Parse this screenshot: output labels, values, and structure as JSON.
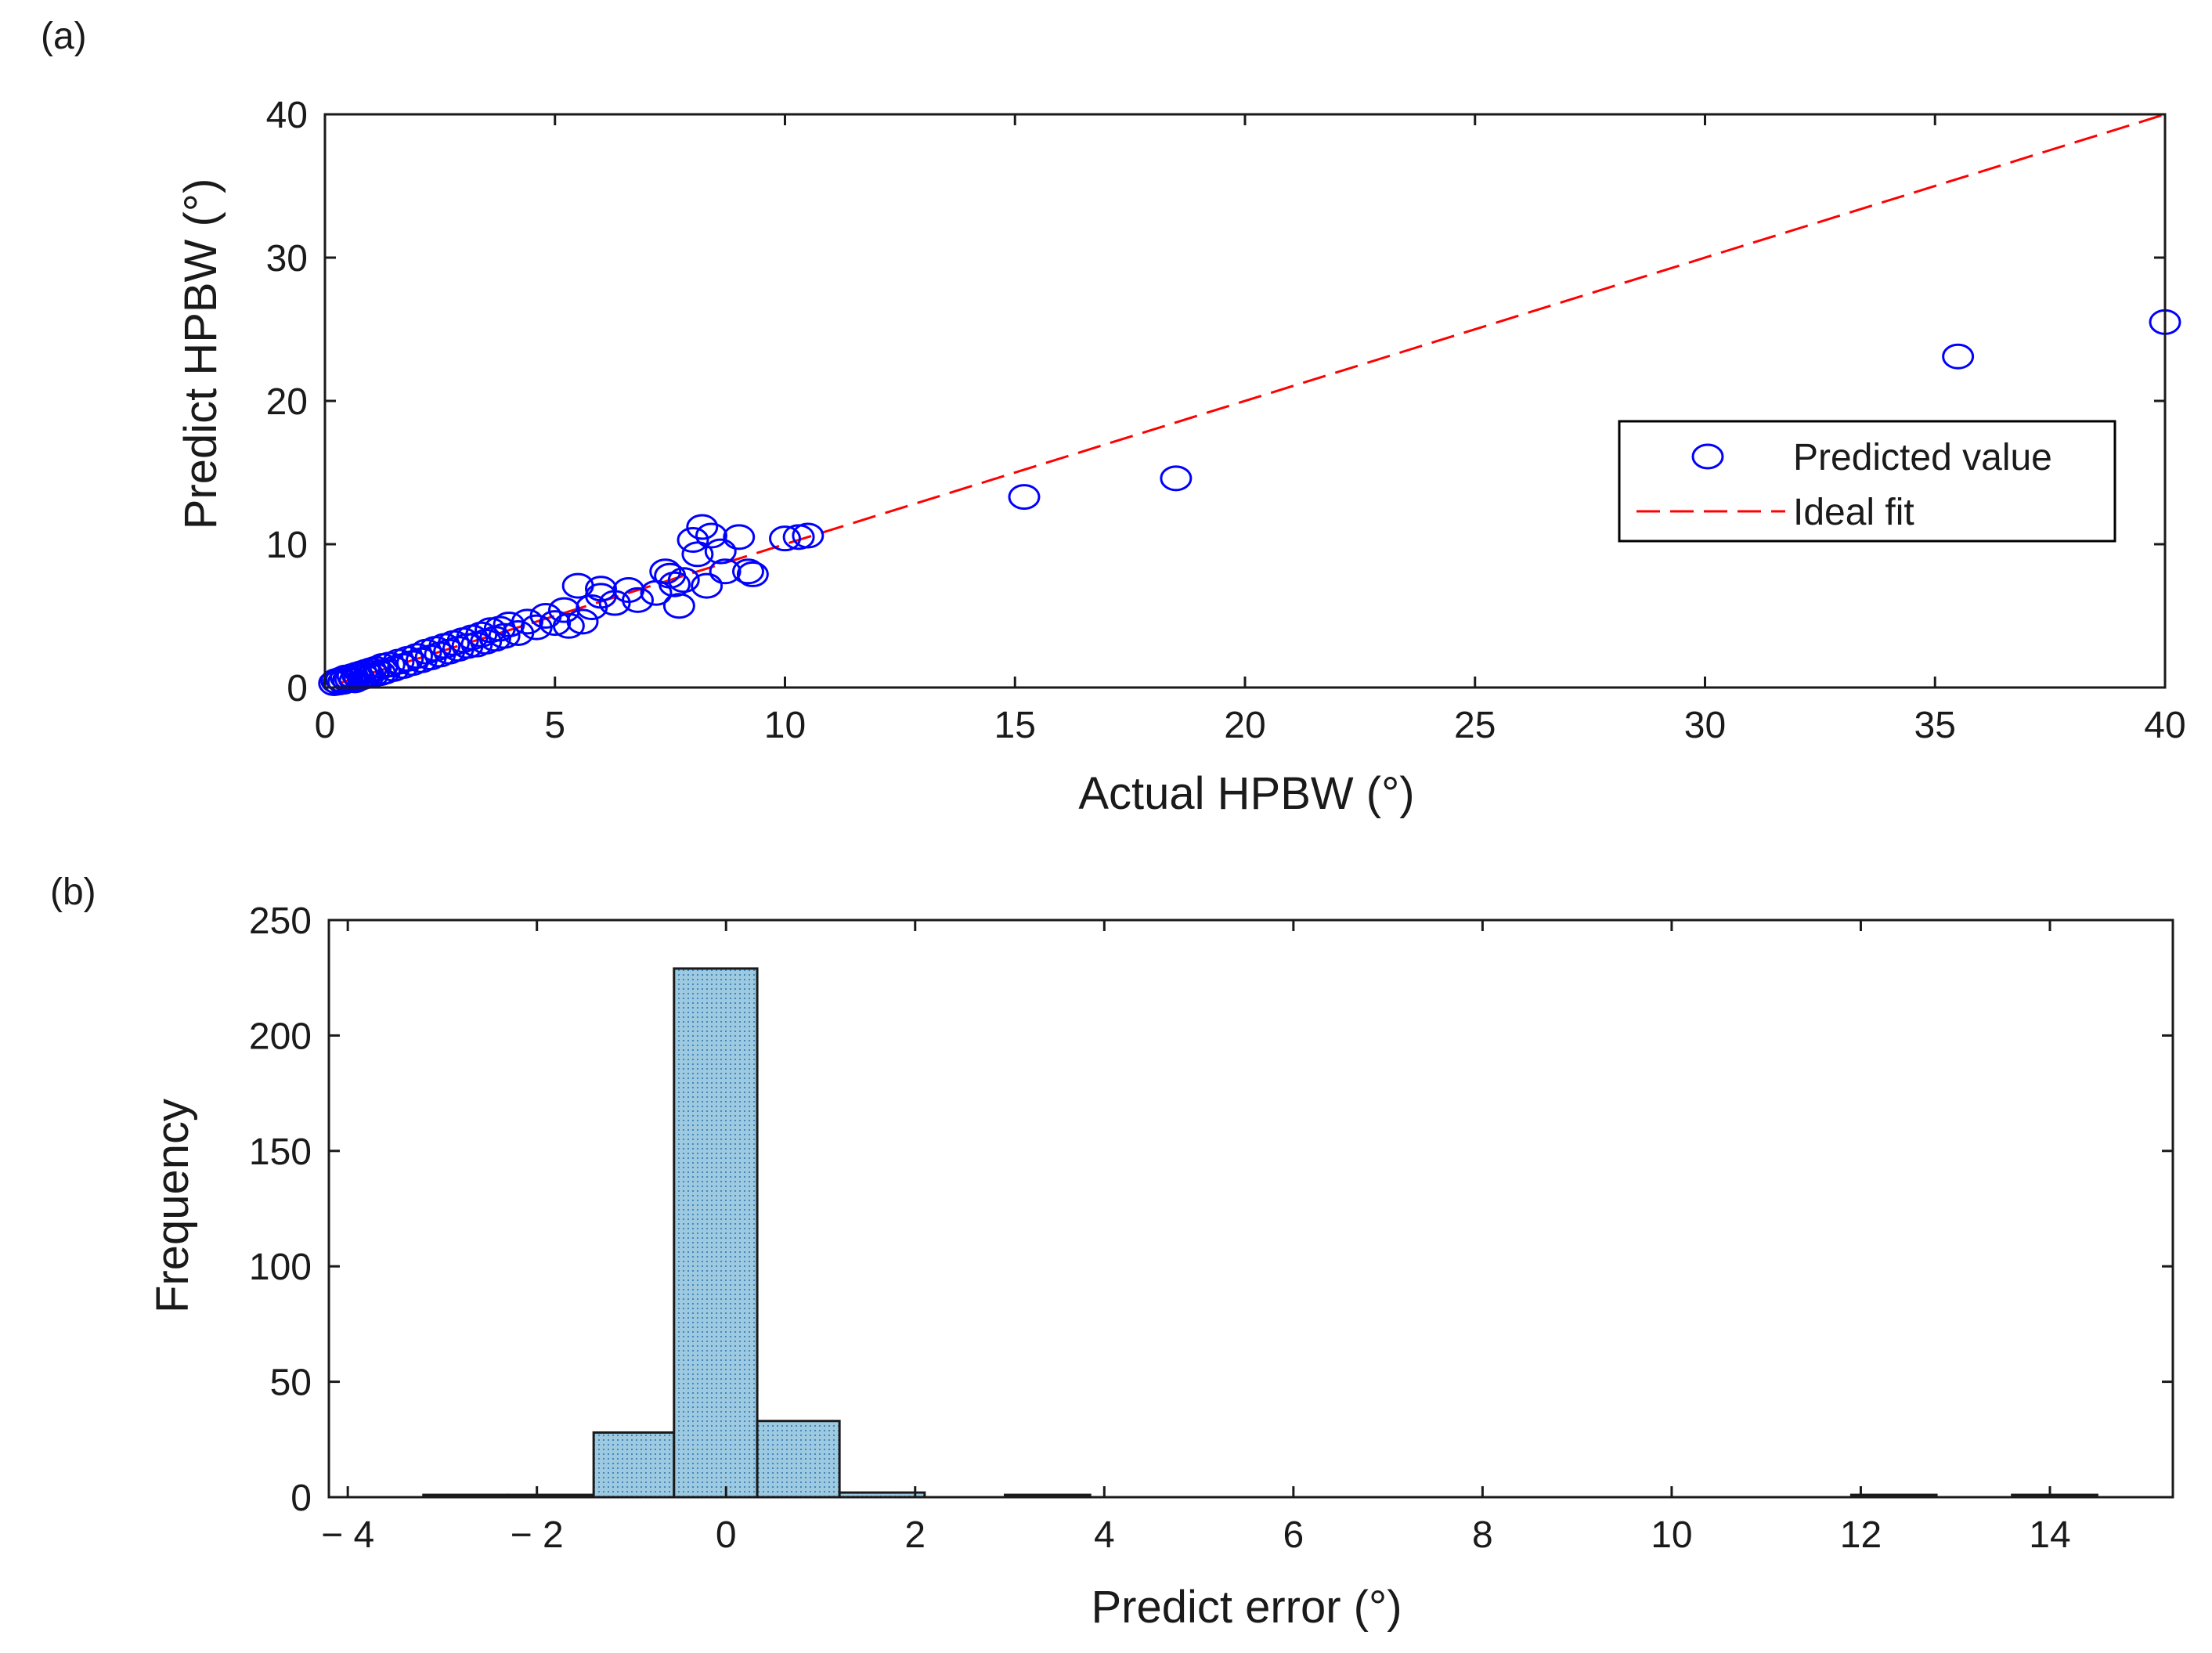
{
  "chart_data": [
    {
      "panel_label": "(a)",
      "type": "scatter",
      "title": "",
      "xlabel": "Actual HPBW (°)",
      "ylabel": "Predict HPBW (°)",
      "xlim": [
        0,
        40
      ],
      "ylim": [
        0,
        40
      ],
      "xticks": [
        0,
        5,
        10,
        15,
        20,
        25,
        30,
        35,
        40
      ],
      "yticks": [
        0,
        10,
        20,
        30,
        40
      ],
      "xtick_labels": [
        "0",
        "5",
        "10",
        "15",
        "20",
        "25",
        "30",
        "35",
        "40"
      ],
      "ytick_labels": [
        "0",
        "10",
        "20",
        "30",
        "40"
      ],
      "legend_position": "right-middle",
      "series": [
        {
          "name": "Predicted value",
          "style": "open-circle",
          "color": "#0000ff",
          "points": [
            [
              0.2,
              0.3
            ],
            [
              0.25,
              0.45
            ],
            [
              0.3,
              0.35
            ],
            [
              0.35,
              0.55
            ],
            [
              0.4,
              0.4
            ],
            [
              0.45,
              0.7
            ],
            [
              0.5,
              0.5
            ],
            [
              0.55,
              0.6
            ],
            [
              0.6,
              0.8
            ],
            [
              0.65,
              0.5
            ],
            [
              0.7,
              0.9
            ],
            [
              0.75,
              0.65
            ],
            [
              0.8,
              1.0
            ],
            [
              0.85,
              0.75
            ],
            [
              0.9,
              1.1
            ],
            [
              0.95,
              0.85
            ],
            [
              1.0,
              1.2
            ],
            [
              1.05,
              0.9
            ],
            [
              1.1,
              1.3
            ],
            [
              1.2,
              1.0
            ],
            [
              1.25,
              1.5
            ],
            [
              1.3,
              1.1
            ],
            [
              1.4,
              1.6
            ],
            [
              1.5,
              1.3
            ],
            [
              1.6,
              1.8
            ],
            [
              1.7,
              1.5
            ],
            [
              1.8,
              2.0
            ],
            [
              1.9,
              1.7
            ],
            [
              2.0,
              2.2
            ],
            [
              2.1,
              1.9
            ],
            [
              2.2,
              2.5
            ],
            [
              2.3,
              2.1
            ],
            [
              2.4,
              2.7
            ],
            [
              2.5,
              2.3
            ],
            [
              2.6,
              2.9
            ],
            [
              2.7,
              2.5
            ],
            [
              2.8,
              3.1
            ],
            [
              2.9,
              2.7
            ],
            [
              3.0,
              3.3
            ],
            [
              3.1,
              2.9
            ],
            [
              3.2,
              3.5
            ],
            [
              3.3,
              3.0
            ],
            [
              3.4,
              3.7
            ],
            [
              3.5,
              3.2
            ],
            [
              3.6,
              4.0
            ],
            [
              3.7,
              3.4
            ],
            [
              3.8,
              4.1
            ],
            [
              3.9,
              3.6
            ],
            [
              4.0,
              4.4
            ],
            [
              4.2,
              3.8
            ],
            [
              4.4,
              4.6
            ],
            [
              4.6,
              4.2
            ],
            [
              4.8,
              5.0
            ],
            [
              5.0,
              4.5
            ],
            [
              5.2,
              5.4
            ],
            [
              5.3,
              4.3
            ],
            [
              5.5,
              7.1
            ],
            [
              5.6,
              4.6
            ],
            [
              5.8,
              5.6
            ],
            [
              6.0,
              6.4
            ],
            [
              6.0,
              6.9
            ],
            [
              6.3,
              5.9
            ],
            [
              6.6,
              6.8
            ],
            [
              6.8,
              6.1
            ],
            [
              7.2,
              6.6
            ],
            [
              7.4,
              8.1
            ],
            [
              7.5,
              7.8
            ],
            [
              7.6,
              7.2
            ],
            [
              7.7,
              5.7
            ],
            [
              7.8,
              7.5
            ],
            [
              8.0,
              10.3
            ],
            [
              8.1,
              9.3
            ],
            [
              8.2,
              11.2
            ],
            [
              8.3,
              7.1
            ],
            [
              8.4,
              10.6
            ],
            [
              8.6,
              9.5
            ],
            [
              8.7,
              8.1
            ],
            [
              9.0,
              10.5
            ],
            [
              9.2,
              8.1
            ],
            [
              9.3,
              7.9
            ],
            [
              10.0,
              10.4
            ],
            [
              10.3,
              10.5
            ],
            [
              10.5,
              10.6
            ],
            [
              15.2,
              13.3
            ],
            [
              18.5,
              14.6
            ],
            [
              35.5,
              23.1
            ],
            [
              40.0,
              25.5
            ]
          ]
        },
        {
          "name": "Ideal fit",
          "style": "dashed-line",
          "color": "#ff0000",
          "points": [
            [
              0.3,
              0.3
            ],
            [
              40,
              40
            ]
          ]
        }
      ]
    },
    {
      "panel_label": "(b)",
      "type": "bar",
      "title": "",
      "xlabel": "Predict error (°)",
      "ylabel": "Frequency",
      "xlim": [
        -4.2,
        15.3
      ],
      "ylim": [
        0,
        250
      ],
      "xticks": [
        -4,
        -2,
        0,
        2,
        4,
        6,
        8,
        10,
        12,
        14
      ],
      "yticks": [
        0,
        50,
        100,
        150,
        200,
        250
      ],
      "xtick_labels": [
        "− 4",
        "− 2",
        "0",
        "2",
        "4",
        "6",
        "8",
        "10",
        "12",
        "14"
      ],
      "ytick_labels": [
        "0",
        "50",
        "100",
        "150",
        "200",
        "250"
      ],
      "bar_color": "#9ecae1",
      "bins": [
        {
          "x0": -3.2,
          "x1": -2.3,
          "count": 1
        },
        {
          "x0": -2.3,
          "x1": -1.4,
          "count": 1
        },
        {
          "x0": -1.4,
          "x1": -0.55,
          "count": 28
        },
        {
          "x0": -0.55,
          "x1": 0.33,
          "count": 229
        },
        {
          "x0": 0.33,
          "x1": 1.2,
          "count": 33
        },
        {
          "x0": 1.2,
          "x1": 2.1,
          "count": 2
        },
        {
          "x0": 2.1,
          "x1": 2.95,
          "count": 0
        },
        {
          "x0": 2.95,
          "x1": 3.85,
          "count": 1
        },
        {
          "x0": 11.9,
          "x1": 12.8,
          "count": 1
        },
        {
          "x0": 13.6,
          "x1": 14.5,
          "count": 1
        }
      ]
    }
  ]
}
